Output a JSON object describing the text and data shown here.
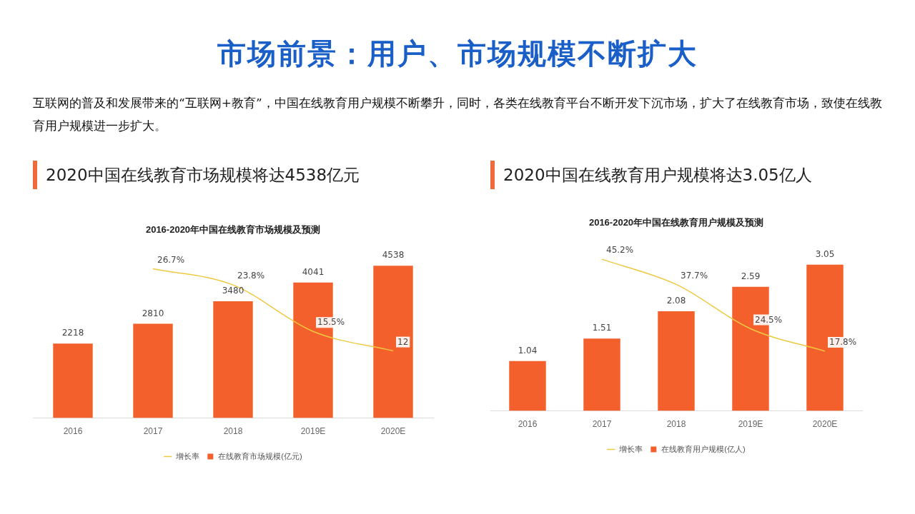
{
  "chart_data": [
    {
      "type": "bar",
      "title": "2016-2020年中国在线教育市场规模及预测",
      "annotations": [
        "市场前景：用户、市场规模不断扩大",
        "互联网的普及和发展带来的“互联网+教育”，中国在线教育用户规模不断攀升，同时，各类在线教育平台不断开发下沉市场，扩大了在线教育市场，致使在线教育用户规模进一步扩大。",
        "2020中国在线教育市场规模将达4538亿元"
      ],
      "categories": [
        "2016",
        "2017",
        "2018",
        "2019E",
        "2020E"
      ],
      "series": [
        {
          "name": "在线教育市场规模(亿元)",
          "color": "#f4602c",
          "values": [
            2218,
            2810,
            3480,
            4041,
            4538
          ],
          "value_labels": [
            "2218",
            "2810",
            "3480",
            "4041",
            "4538"
          ]
        },
        {
          "name": "增长率",
          "type": "line",
          "axis": "y2",
          "color": "#eec940",
          "values": [
            null,
            26.7,
            23.8,
            15.5,
            12
          ],
          "value_labels": [
            null,
            "26.7%",
            "23.8%",
            "15.5%",
            "12"
          ]
        }
      ],
      "legend": "bottom",
      "grid": false,
      "marker": "none"
    },
    {
      "type": "bar",
      "title": "2016-2020年中国在线教育用户规模及预测",
      "annotations": [
        "2020中国在线教育用户规模将达3.05亿人"
      ],
      "categories": [
        "2016",
        "2017",
        "2018",
        "2019E",
        "2020E"
      ],
      "series": [
        {
          "name": "在线教育用户规模(亿人)",
          "color": "#f4602c",
          "values": [
            1.04,
            1.51,
            2.08,
            2.59,
            3.05
          ],
          "value_labels": [
            "1.04",
            "1.51",
            "2.08",
            "2.59",
            "3.05"
          ]
        },
        {
          "name": "增长率",
          "type": "line",
          "axis": "y2",
          "color": "#eec940",
          "values": [
            null,
            45.2,
            37.7,
            24.5,
            17.8
          ],
          "value_labels": [
            null,
            "45.2%",
            "37.7%",
            "24.5%",
            "17.8%"
          ]
        }
      ],
      "legend": "bottom",
      "grid": false,
      "marker": "none"
    }
  ]
}
